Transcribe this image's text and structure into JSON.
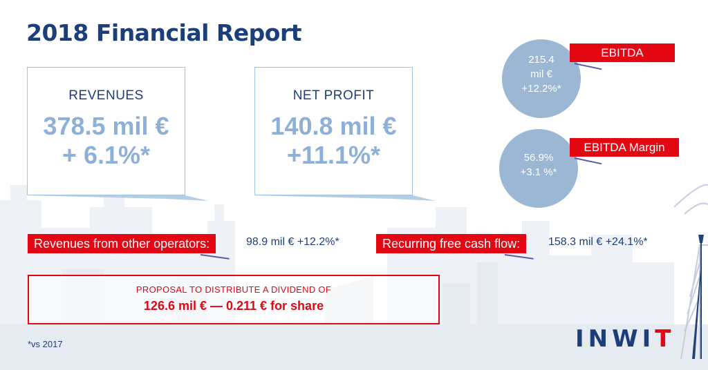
{
  "title": "2018 Financial Report",
  "cards": [
    {
      "label": "REVENUES",
      "value_line1": "378.5 mil €",
      "value_line2": "+ 6.1%*"
    },
    {
      "label": "NET PROFIT",
      "value_line1": "140.8 mil €",
      "value_line2": "+11.1%*"
    }
  ],
  "ebitda": {
    "label": "EBITDA",
    "line1": "215.4",
    "line2": "mil €",
    "line3": "+12.2%*"
  },
  "ebitda_margin": {
    "label": "EBITDA Margin",
    "line1": "56.9%",
    "line2": "+3.1 %*"
  },
  "metrics": [
    {
      "label": "Revenues from other operators:",
      "value": "98.9 mil € +12.2%*"
    },
    {
      "label": "Recurring free cash flow:",
      "value": "158.3 mil € +24.1%*"
    }
  ],
  "dividend": {
    "line1": "PROPOSAL TO DISTRIBUTE A DIVIDEND OF",
    "line2": "126.6 mil € — 0.211 € for share"
  },
  "footnote": "*vs 2017",
  "logo": {
    "part1": "INWI",
    "part2": "T"
  },
  "colors": {
    "navy": "#1c3f7a",
    "red": "#e30613",
    "light_blue": "#8eb0d6",
    "circle": "#9bb7d4"
  }
}
